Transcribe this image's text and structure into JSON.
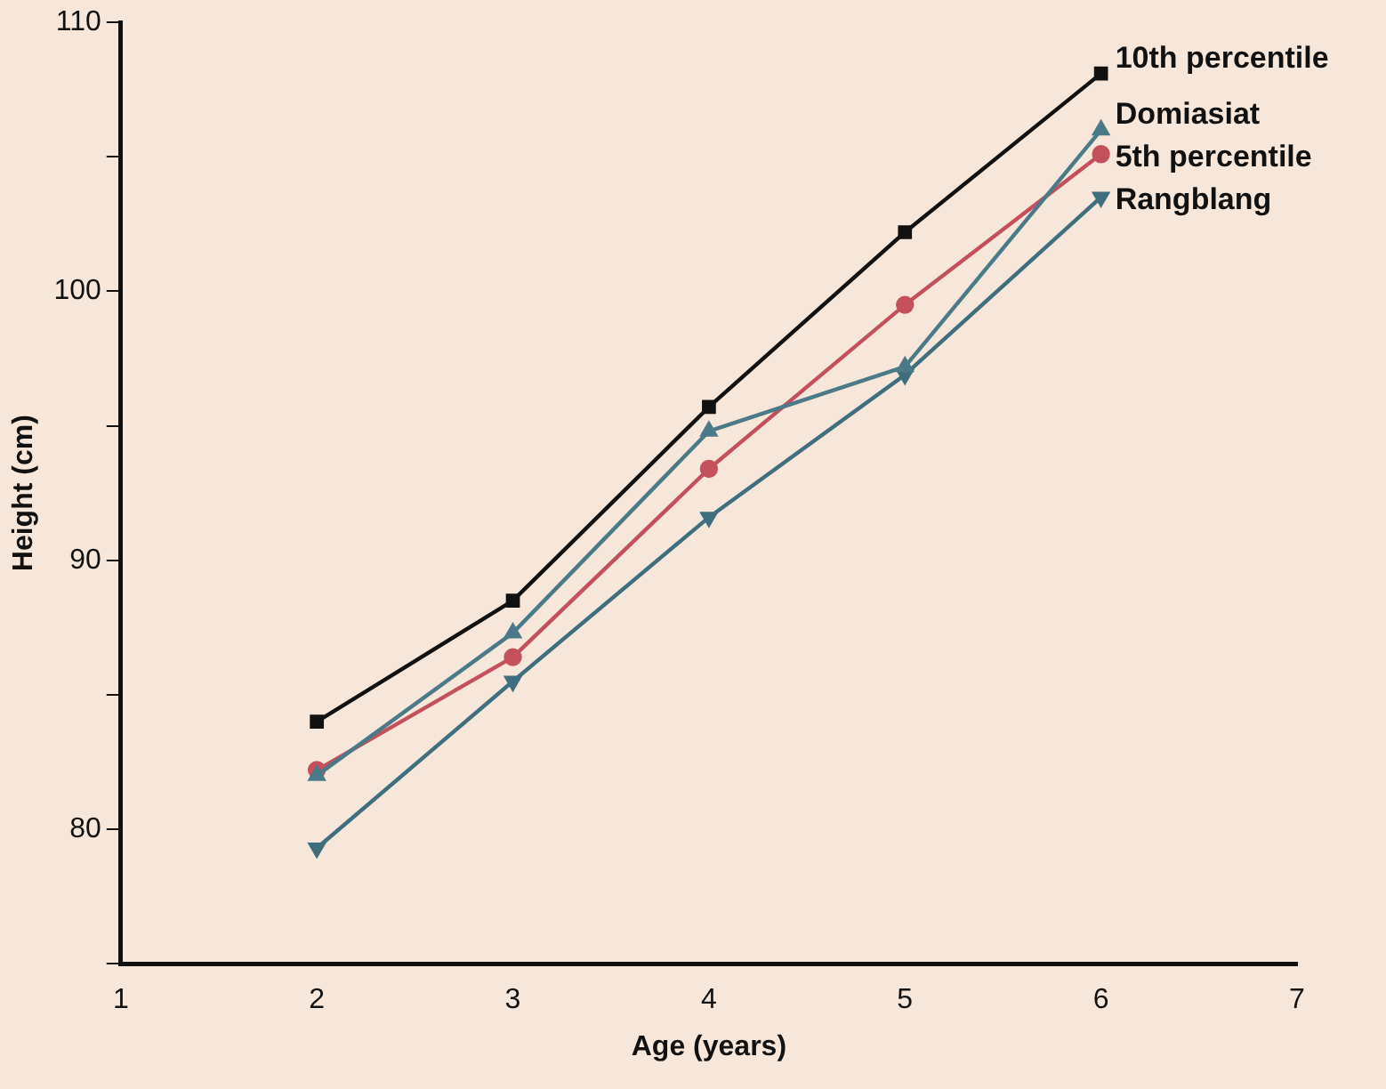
{
  "chart_data": {
    "type": "line",
    "xlabel": "Age (years)",
    "ylabel": "Height (cm)",
    "x": [
      2,
      3,
      4,
      5,
      6
    ],
    "xlim": [
      1,
      7
    ],
    "xticks": [
      1,
      2,
      3,
      4,
      5,
      6,
      7
    ],
    "ylim": [
      75,
      110
    ],
    "yticks": [
      {
        "value": 75,
        "label": null
      },
      80,
      {
        "value": 85,
        "label": null
      },
      90,
      {
        "value": 95,
        "label": null
      },
      100,
      {
        "value": 105,
        "label": null
      },
      110
    ],
    "grid": false,
    "legend": false,
    "series": [
      {
        "name": "10th percentile",
        "color": "#111111",
        "marker": "square",
        "values": [
          84.0,
          88.5,
          95.7,
          102.2,
          108.1
        ]
      },
      {
        "name": "Domiasiat",
        "color": "#4a7a88",
        "marker": "triangle",
        "values": [
          82.0,
          87.3,
          94.8,
          97.2,
          106.0
        ]
      },
      {
        "name": "5th percentile",
        "color": "#c4505c",
        "marker": "circle",
        "values": [
          82.2,
          86.4,
          93.4,
          99.5,
          105.1
        ]
      },
      {
        "name": "Rangblang",
        "color": "#3f6f7e",
        "marker": "triangle-down",
        "values": [
          79.3,
          85.5,
          91.6,
          96.9,
          103.5
        ]
      }
    ]
  }
}
